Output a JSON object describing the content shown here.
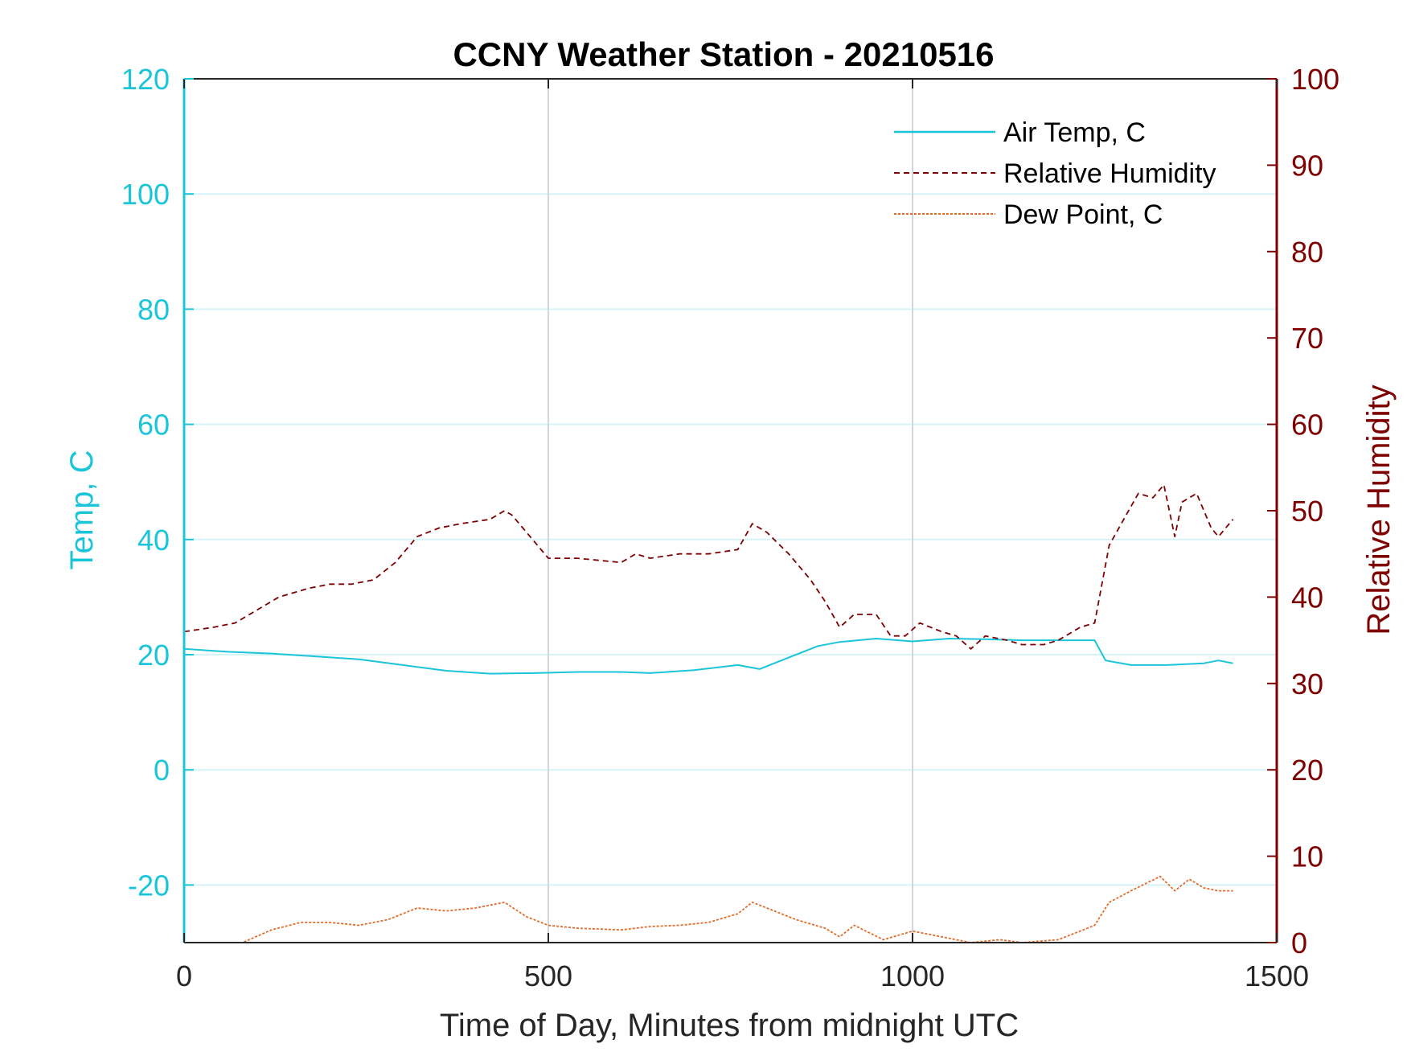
{
  "chart_data": {
    "type": "line",
    "title": "CCNY Weather Station - 20210516",
    "xlabel": "Time of Day, Minutes from midnight UTC",
    "ylabel_left": "Temp, C",
    "ylabel_right": "Relative Humidity",
    "xlim": [
      0,
      1500
    ],
    "ylim_left": [
      -30,
      120
    ],
    "ylim_right": [
      0,
      100
    ],
    "xticks": [
      0,
      500,
      1000,
      1500
    ],
    "yticks_left": [
      -20,
      0,
      20,
      40,
      60,
      80,
      100,
      120
    ],
    "yticks_right": [
      0,
      10,
      20,
      30,
      40,
      50,
      60,
      70,
      80,
      90,
      100
    ],
    "grid": "on",
    "legend_location": "top-right",
    "colors": {
      "left_axis": "#1BC5D9",
      "right_axis": "#7F0000",
      "air_temp": "#1BC5D9",
      "rh": "#7F0000",
      "dew_point": "#E36B2A",
      "hgrid": "#D6F3F6",
      "vgrid": "#D0D6DC"
    },
    "series": [
      {
        "name": "Air Temp, C",
        "axis": "left",
        "style": "solid",
        "x": [
          0,
          60,
          120,
          180,
          240,
          300,
          360,
          420,
          480,
          540,
          600,
          640,
          700,
          760,
          790,
          830,
          870,
          900,
          950,
          1000,
          1050,
          1100,
          1150,
          1200,
          1250,
          1265,
          1300,
          1350,
          1400,
          1420,
          1440
        ],
        "y": [
          21,
          20.5,
          20.2,
          19.7,
          19.2,
          18.2,
          17.2,
          16.7,
          16.8,
          17,
          17,
          16.8,
          17.3,
          18.2,
          17.5,
          19.5,
          21.5,
          22.2,
          22.8,
          22.3,
          22.8,
          22.7,
          22.5,
          22.5,
          22.5,
          19,
          18.2,
          18.2,
          18.5,
          19,
          18.5
        ]
      },
      {
        "name": "Relative Humidity",
        "axis": "right",
        "style": "dashed",
        "x": [
          0,
          40,
          70,
          100,
          130,
          170,
          200,
          230,
          260,
          290,
          320,
          350,
          380,
          420,
          440,
          450,
          480,
          500,
          540,
          600,
          620,
          640,
          680,
          720,
          760,
          780,
          800,
          830,
          860,
          880,
          900,
          920,
          950,
          970,
          990,
          1010,
          1040,
          1060,
          1080,
          1100,
          1130,
          1150,
          1180,
          1200,
          1230,
          1250,
          1270,
          1290,
          1310,
          1330,
          1345,
          1360,
          1370,
          1390,
          1410,
          1420,
          1440
        ],
        "y": [
          36,
          36.5,
          37,
          38.5,
          40,
          41,
          41.5,
          41.5,
          42,
          44,
          47,
          48,
          48.5,
          49,
          50,
          49.5,
          46.5,
          44.5,
          44.5,
          44,
          45,
          44.5,
          45,
          45,
          45.5,
          48.5,
          47.5,
          45,
          42,
          39.5,
          36.5,
          38,
          38,
          35.5,
          35.5,
          37,
          36,
          35.5,
          34,
          35.5,
          35,
          34.5,
          34.5,
          35,
          36.5,
          37,
          46,
          49,
          52,
          51.5,
          53,
          47,
          51,
          52,
          48,
          47,
          49
        ]
      },
      {
        "name": "Dew Point, C",
        "axis": "left",
        "style": "dotted",
        "x": [
          0,
          40,
          80,
          120,
          160,
          200,
          240,
          280,
          320,
          360,
          400,
          440,
          470,
          500,
          540,
          600,
          640,
          680,
          720,
          760,
          780,
          800,
          840,
          880,
          900,
          920,
          960,
          1000,
          1040,
          1080,
          1120,
          1150,
          1200,
          1230,
          1250,
          1270,
          1300,
          1340,
          1360,
          1380,
          1400,
          1420,
          1440
        ],
        "y": [
          -30,
          -30.5,
          -30,
          -27.8,
          -26.5,
          -26.5,
          -27,
          -26,
          -24,
          -24.5,
          -24,
          -23,
          -25.5,
          -27,
          -27.5,
          -27.8,
          -27.2,
          -27,
          -26.5,
          -25,
          -23,
          -24,
          -26,
          -27.5,
          -29,
          -27,
          -29.5,
          -28,
          -29,
          -30,
          -29.5,
          -30,
          -29.5,
          -28,
          -27,
          -23,
          -21,
          -18.5,
          -21,
          -19,
          -20.5,
          -21,
          -21
        ]
      }
    ]
  }
}
